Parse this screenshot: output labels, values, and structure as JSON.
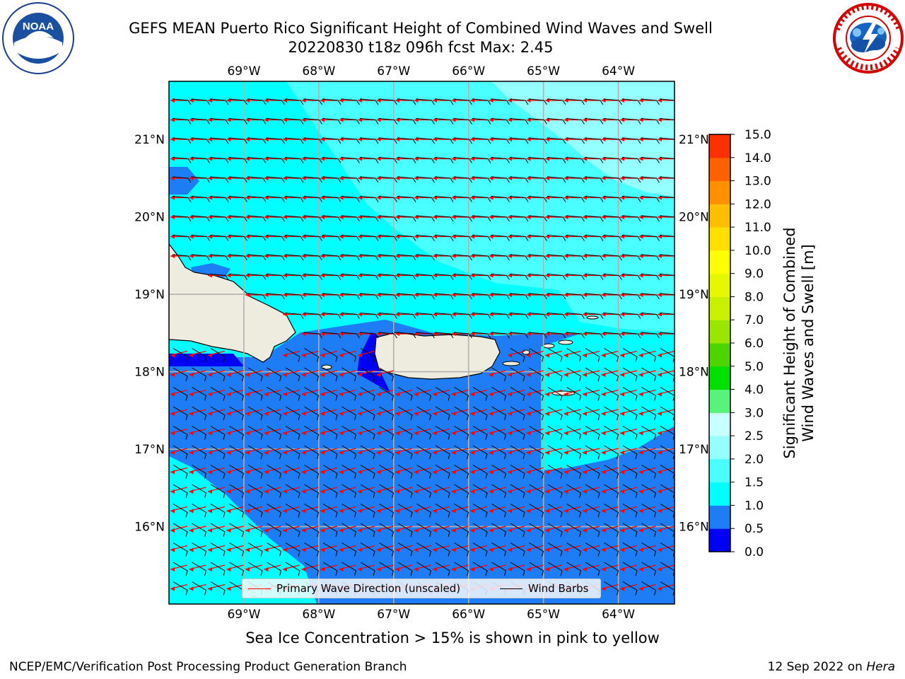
{
  "title": {
    "line1": "GEFS MEAN Puerto Rico Significant Height of Combined Wind Waves and Swell",
    "line2": "20220830 t18z 096h fcst   Max: 2.45"
  },
  "map": {
    "lon_labels": [
      "69°W",
      "68°W",
      "67°W",
      "66°W",
      "65°W",
      "64°W"
    ],
    "lon_values": [
      -69,
      -68,
      -67,
      -66,
      -65,
      -64
    ],
    "lat_labels": [
      "16°N",
      "17°N",
      "18°N",
      "19°N",
      "20°N",
      "21°N"
    ],
    "lat_values": [
      16,
      17,
      18,
      19,
      20,
      21
    ],
    "extent": {
      "lon_min": -70.0,
      "lon_max": -63.25,
      "lat_min": 15.0,
      "lat_max": 21.75
    },
    "land_color": "#eeecdf",
    "ocean_colors": {
      "0.5-1.0": "#0000f5",
      "1.0-1.5": "#1e7df4",
      "1.5-2.0": "#00ffff",
      "2.0-2.5": "#49ffff",
      "2.5-3.0": "#95ffff"
    },
    "wave_direction_color": "#ff0000",
    "wind_barb_color": "#000000"
  },
  "legend": {
    "wave_label": "Primary Wave Direction (unscaled)",
    "barb_label": "Wind Barbs"
  },
  "colorbar": {
    "label_line1": "Significant Height of Combined",
    "label_line2": "Wind Waves and Swell [m]",
    "ticks": [
      "0.0",
      "0.5",
      "1.0",
      "1.5",
      "2.0",
      "2.5",
      "3.0",
      "4.0",
      "5.0",
      "6.0",
      "7.0",
      "8.0",
      "9.0",
      "10.0",
      "11.0",
      "12.0",
      "13.0",
      "14.0",
      "15.0"
    ],
    "colors": [
      "#0000f5",
      "#1e7df4",
      "#00ffff",
      "#49ffff",
      "#95ffff",
      "#c8ffff",
      "#57f37a",
      "#00e000",
      "#4ed500",
      "#9be600",
      "#c8f000",
      "#e6f800",
      "#ffff00",
      "#ffe000",
      "#ffbf00",
      "#ff9000",
      "#ff6000",
      "#ff3000",
      "#ff0000"
    ]
  },
  "subtitle": "Sea Ice Concentration > 15% is shown in pink to yellow",
  "footer": {
    "left": "NCEP/EMC/Verification Post Processing Product Generation Branch",
    "right_date": "12 Sep 2022 on ",
    "right_host": "Hera"
  }
}
